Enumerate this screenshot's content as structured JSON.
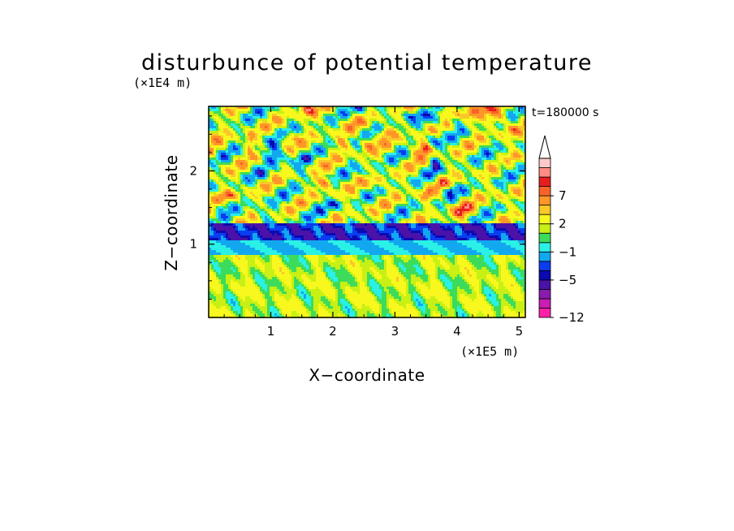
{
  "chart_data": {
    "type": "heatmap",
    "title": "disturbunce of potential temperature",
    "xlabel": "X−coordinate",
    "ylabel": "Z−coordinate",
    "x_unit": "(×1E5 m)",
    "y_unit": "(×1E4 m)",
    "time_label": "t=180000 s",
    "xlim": [
      0,
      5.1
    ],
    "ylim": [
      0,
      2.88
    ],
    "x_ticks": [
      1,
      2,
      3,
      4,
      5
    ],
    "x_tick_labels": [
      "1",
      "2",
      "3",
      "4",
      "5"
    ],
    "y_ticks": [
      1,
      2
    ],
    "y_tick_labels": [
      "1",
      "2"
    ],
    "colorbar": {
      "levels": [
        -12,
        -11,
        -9,
        -7,
        -5,
        -4,
        -3,
        -1,
        0,
        1,
        2,
        4,
        5,
        7,
        8,
        9,
        10
      ],
      "colors": [
        "#ff1fa8",
        "#c81eb4",
        "#8a1ab0",
        "#4a12a8",
        "#0a0ab0",
        "#0a3cf0",
        "#12a8f0",
        "#2af0e6",
        "#3cdc5a",
        "#c8f014",
        "#f8f81e",
        "#fac828",
        "#ff9628",
        "#f86428",
        "#e81e1e",
        "#ff8c82",
        "#ffc8c8"
      ],
      "tick_labels": [
        {
          "value": -12,
          "text": "−12"
        },
        {
          "value": -5,
          "text": "−5"
        },
        {
          "value": -1,
          "text": "−1"
        },
        {
          "value": 2,
          "text": "2"
        },
        {
          "value": 7,
          "text": "7"
        }
      ],
      "extend": "max"
    },
    "field_description": [
      {
        "z_range": [
          0,
          0.85
        ],
        "typical_value": 1.5
      },
      {
        "z_range": [
          0.85,
          1.05
        ],
        "typical_value": -1.2
      },
      {
        "z_range": [
          1.05,
          1.3
        ],
        "typical_value": -4.5
      },
      {
        "z_range": [
          1.3,
          2.88
        ],
        "typical_value": 4
      }
    ]
  }
}
